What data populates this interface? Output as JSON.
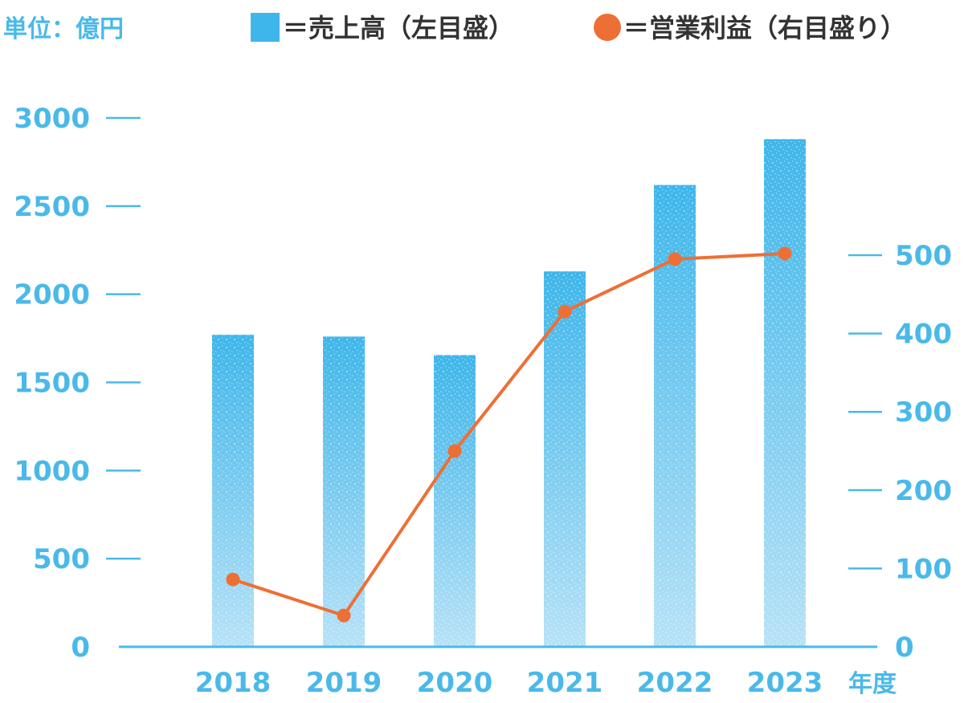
{
  "chart_data": {
    "type": "bar+line",
    "unit_label": "単位：億円",
    "legend": {
      "bar_label": "＝売上高（左目盛）",
      "line_label": "＝営業利益（右目盛り）"
    },
    "categories": [
      "2018",
      "2019",
      "2020",
      "2021",
      "2022",
      "2023"
    ],
    "x_unit": "年度",
    "series": [
      {
        "name": "売上高",
        "type": "bar",
        "axis": "left",
        "values": [
          1770,
          1760,
          1655,
          2130,
          2620,
          2880
        ]
      },
      {
        "name": "営業利益",
        "type": "line",
        "axis": "right",
        "values": [
          86,
          40,
          250,
          428,
          495,
          502
        ]
      }
    ],
    "y_left": {
      "min": 0,
      "max": 3000,
      "ticks": [
        0,
        500,
        1000,
        1500,
        2000,
        2500,
        3000
      ]
    },
    "y_right": {
      "min": 0,
      "max": 500,
      "ticks": [
        0,
        100,
        200,
        300,
        400,
        500
      ]
    },
    "colors": {
      "bar_top": "#3fb6ea",
      "bar_bottom": "#b7e2f7",
      "line": "#ee6f35",
      "axis": "#4ab9e9",
      "text": "#4ab9e9",
      "legend_text": "#333333"
    }
  }
}
